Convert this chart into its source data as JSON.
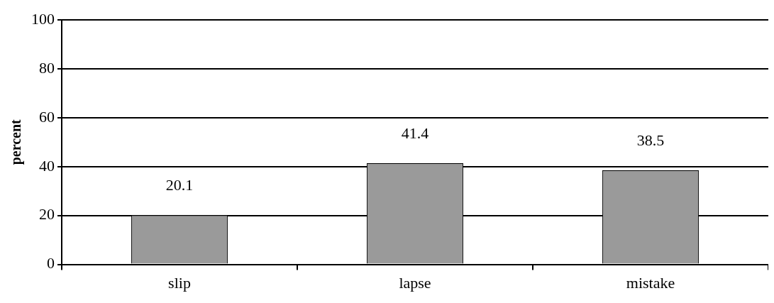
{
  "chart_data": {
    "type": "bar",
    "ylabel": "percent",
    "categories": [
      "slip",
      "lapse",
      "mistake"
    ],
    "values": [
      20.1,
      41.4,
      38.5
    ],
    "color": "#9a9a9a",
    "ylim": [
      0,
      100
    ],
    "yticks": [
      0,
      20,
      40,
      60,
      80,
      100
    ],
    "grid": "y",
    "data_labels": true,
    "legend": false
  }
}
